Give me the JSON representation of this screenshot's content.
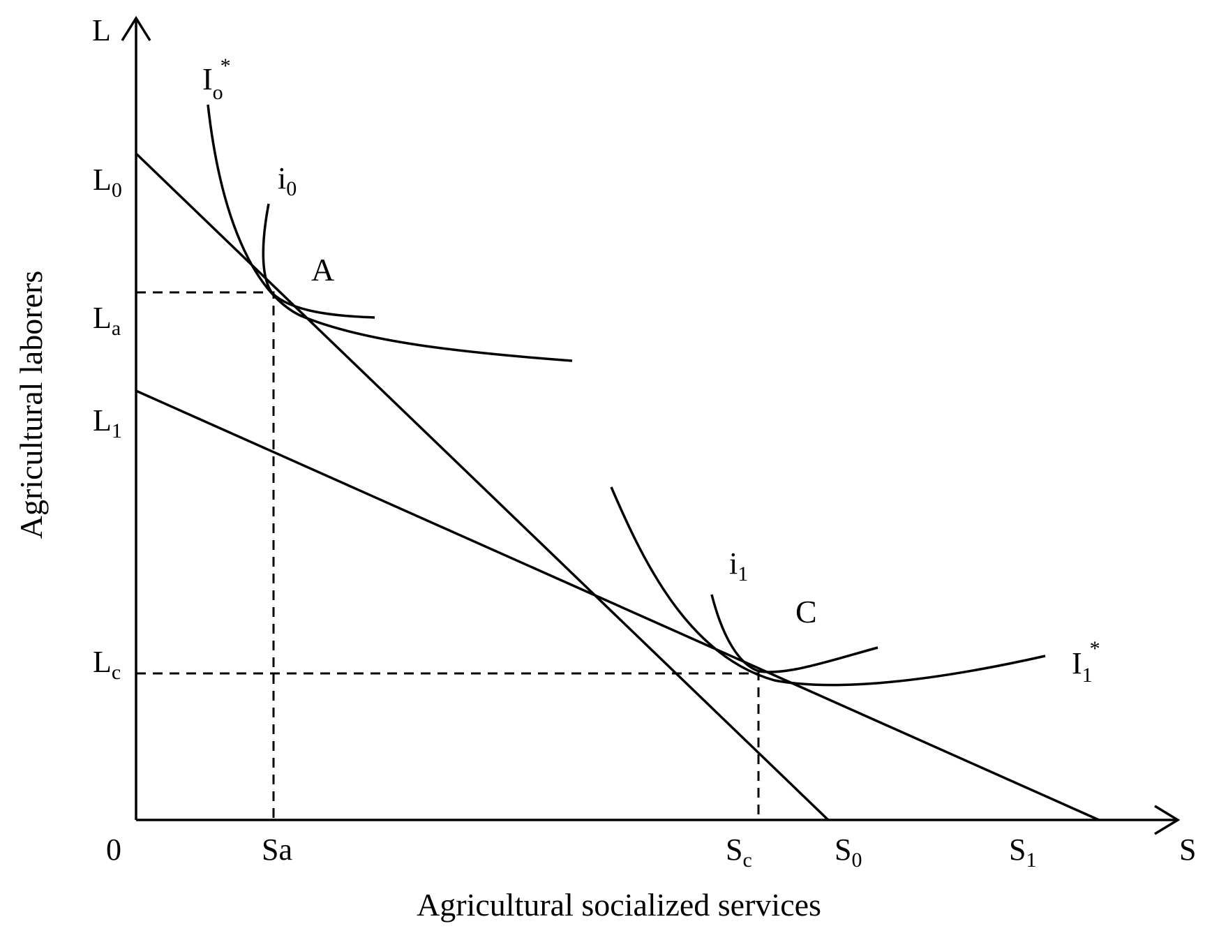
{
  "axes": {
    "y_symbol": "L",
    "x_symbol": "S",
    "origin": "0",
    "y_title": "Agricultural laborers",
    "x_title": "Agricultural socialized services"
  },
  "y_ticks": [
    {
      "main": "L",
      "sub": "0"
    },
    {
      "main": "L",
      "sub": "a"
    },
    {
      "main": "L",
      "sub": "1"
    },
    {
      "main": "L",
      "sub": "c"
    }
  ],
  "x_ticks": [
    {
      "main": "Sa",
      "sub": ""
    },
    {
      "main": "S",
      "sub": "c"
    },
    {
      "main": "S",
      "sub": "0"
    },
    {
      "main": "S",
      "sub": "1"
    }
  ],
  "curve_labels": {
    "I0_star": {
      "main": "I",
      "sub": "o",
      "sup": "*"
    },
    "i0": {
      "main": "i",
      "sub": "0"
    },
    "i1": {
      "main": "i",
      "sub": "1"
    },
    "I1_star": {
      "main": "I",
      "sub": "1",
      "sup": "*"
    }
  },
  "points": {
    "A": "A",
    "C": "C"
  }
}
